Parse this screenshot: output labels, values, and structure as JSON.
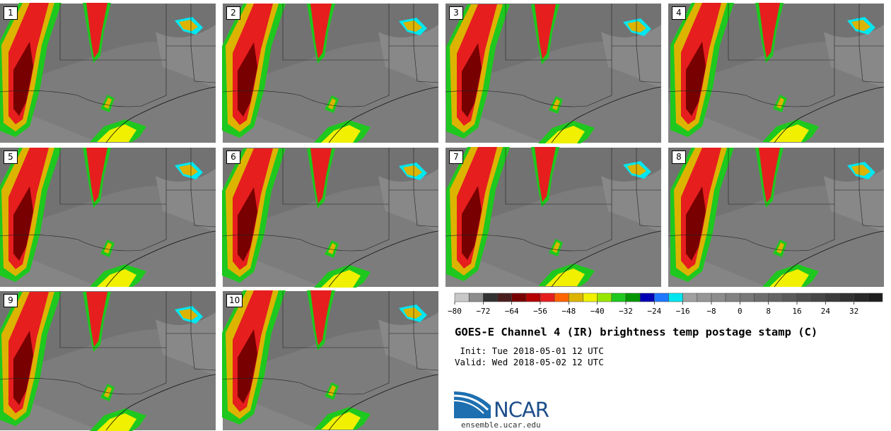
{
  "title": "GOES-E Channel 4 (IR) brightness temp postage stamp (C)",
  "init": " Init: Tue 2018-05-01 12 UTC",
  "valid": "Valid: Wed 2018-05-02 12 UTC",
  "site": "ensemble.ucar.edu",
  "logo": {
    "text": "NCAR",
    "color": "#1d4f8a"
  },
  "panels": [
    {
      "label": "1"
    },
    {
      "label": "2"
    },
    {
      "label": "3"
    },
    {
      "label": "4"
    },
    {
      "label": "5"
    },
    {
      "label": "6"
    },
    {
      "label": "7"
    },
    {
      "label": "8"
    },
    {
      "label": "9"
    },
    {
      "label": "10"
    }
  ],
  "colorbar": {
    "colors": [
      "#c8c8c8",
      "#8c8c8c",
      "#323232",
      "#4b1e1e",
      "#780000",
      "#b40000",
      "#e61e1e",
      "#ff6400",
      "#dcb400",
      "#f0f000",
      "#96e600",
      "#1ec81e",
      "#009600",
      "#0000b4",
      "#1e78ff",
      "#00e6f0",
      "#a0a0a0",
      "#969696",
      "#8c8c8c",
      "#828282",
      "#787878",
      "#6e6e6e",
      "#646464",
      "#5a5a5a",
      "#505050",
      "#464646",
      "#3c3c3c",
      "#323232",
      "#282828",
      "#1e1e1e"
    ],
    "ticks": [
      "−80",
      "−72",
      "−64",
      "−56",
      "−48",
      "−40",
      "−32",
      "−24",
      "−16",
      "−8",
      "0",
      "8",
      "16",
      "24",
      "32"
    ]
  }
}
